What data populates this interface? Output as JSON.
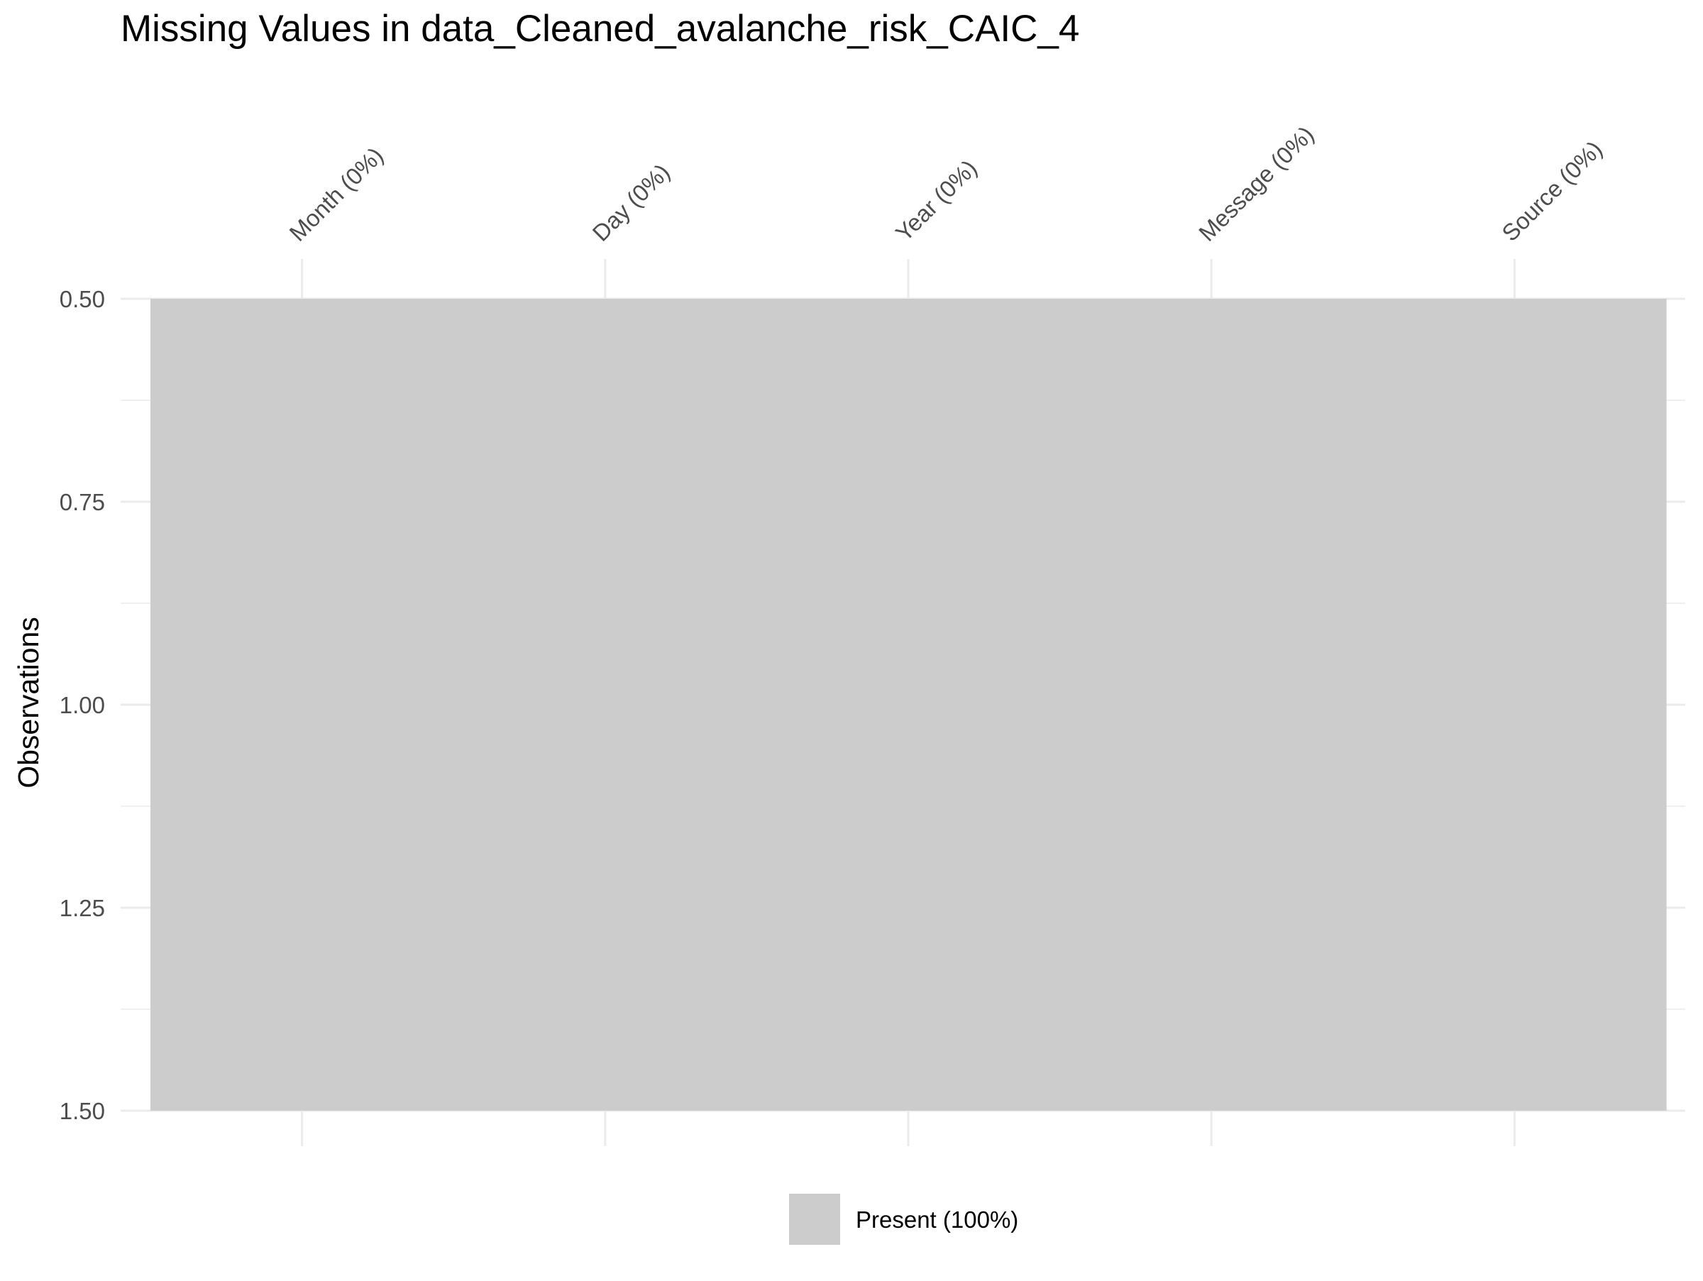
{
  "chart_data": {
    "type": "heatmap",
    "title": "Missing Values in data_Cleaned_avalanche_risk_CAIC_4",
    "xlabel": "",
    "ylabel": "Observations",
    "categories": [
      "Month (0%)",
      "Day (0%)",
      "Year (0%)",
      "Message (0%)",
      "Source (0%)"
    ],
    "y_ticks": [
      "0.50",
      "0.75",
      "1.00",
      "1.25",
      "1.50"
    ],
    "ylim": [
      0.5,
      1.5
    ],
    "y_reversed": true,
    "x_axis_position": "top",
    "rows": [
      1
    ],
    "cells": [
      [
        "Present",
        "Present",
        "Present",
        "Present",
        "Present"
      ]
    ],
    "legend": {
      "position": "bottom",
      "entries": [
        {
          "label": "Present (100%)",
          "color": "#cccccc"
        }
      ]
    },
    "grid": true
  },
  "colors": {
    "present": "#cccccc",
    "grid": "#ebebeb",
    "background": "#ffffff"
  }
}
